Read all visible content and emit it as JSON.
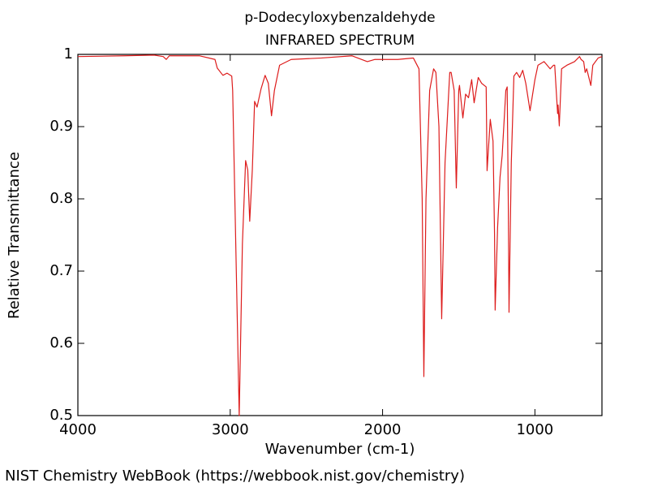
{
  "chart_data": {
    "type": "line",
    "title": "p-Dodecyloxybenzaldehyde",
    "subtitle": "INFRARED SPECTRUM",
    "x_label": "Wavenumber (cm-1)",
    "y_label": "Relative Transmittance",
    "source": "NIST Chemistry WebBook (https://webbook.nist.gov/chemistry)",
    "color": "#dd1c1c",
    "xlim": [
      4000,
      560
    ],
    "ylim": [
      0.5,
      1
    ],
    "xticks": [
      4000,
      3000,
      2000,
      1000
    ],
    "yticks": [
      0.5,
      0.6,
      0.7,
      0.8,
      0.9,
      1
    ],
    "x": [
      4000,
      3700,
      3500,
      3440,
      3420,
      3400,
      3200,
      3100,
      3085,
      3048,
      3021,
      2990,
      2984,
      2968,
      2941,
      2920,
      2899,
      2885,
      2872,
      2855,
      2840,
      2824,
      2798,
      2771,
      2750,
      2729,
      2710,
      2676,
      2600,
      2400,
      2200,
      2100,
      2050,
      1900,
      1798,
      1761,
      1740,
      1729,
      1715,
      1691,
      1665,
      1650,
      1630,
      1612,
      1590,
      1559,
      1550,
      1530,
      1516,
      1500,
      1495,
      1473,
      1455,
      1436,
      1415,
      1399,
      1372,
      1350,
      1320,
      1314,
      1293,
      1275,
      1265,
      1261,
      1245,
      1229,
      1215,
      1191,
      1182,
      1175,
      1170,
      1155,
      1138,
      1120,
      1100,
      1080,
      1060,
      1032,
      1000,
      980,
      940,
      900,
      878,
      870,
      851,
      848,
      840,
      825,
      790,
      740,
      707,
      697,
      680,
      670,
      660,
      633,
      620,
      585,
      560
    ],
    "values": [
      0.997,
      0.998,
      0.999,
      0.997,
      0.993,
      0.998,
      0.998,
      0.993,
      0.981,
      0.971,
      0.974,
      0.97,
      0.95,
      0.783,
      0.5,
      0.738,
      0.853,
      0.84,
      0.769,
      0.84,
      0.935,
      0.927,
      0.952,
      0.971,
      0.96,
      0.915,
      0.95,
      0.985,
      0.993,
      0.995,
      0.998,
      0.99,
      0.993,
      0.993,
      0.995,
      0.98,
      0.8,
      0.554,
      0.8,
      0.95,
      0.98,
      0.975,
      0.9,
      0.634,
      0.85,
      0.975,
      0.975,
      0.95,
      0.815,
      0.95,
      0.957,
      0.912,
      0.945,
      0.94,
      0.965,
      0.933,
      0.968,
      0.96,
      0.955,
      0.839,
      0.91,
      0.88,
      0.75,
      0.646,
      0.76,
      0.83,
      0.86,
      0.95,
      0.955,
      0.8,
      0.643,
      0.85,
      0.97,
      0.975,
      0.968,
      0.978,
      0.96,
      0.922,
      0.965,
      0.985,
      0.99,
      0.98,
      0.985,
      0.985,
      0.918,
      0.93,
      0.901,
      0.98,
      0.985,
      0.99,
      0.997,
      0.993,
      0.99,
      0.975,
      0.98,
      0.957,
      0.985,
      0.995,
      0.997
    ]
  }
}
